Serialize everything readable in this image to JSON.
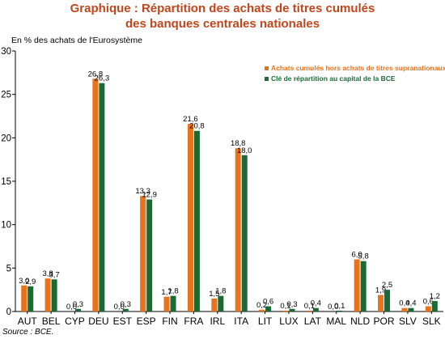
{
  "chart_data": {
    "type": "bar",
    "title": "Graphique : Répartition des achats de titres cumulés",
    "title_line2": "des banques centrales nationales",
    "unit_label": "En % des achats de l'Eurosystème",
    "source": "Source : BCE.",
    "ylim": [
      0,
      30
    ],
    "yticks": [
      0,
      5,
      10,
      15,
      20,
      25,
      30
    ],
    "grid": false,
    "legend_position": "top-right",
    "categories": [
      "AUT",
      "BEL",
      "CYP",
      "DEU",
      "EST",
      "ESP",
      "FIN",
      "FRA",
      "IRL",
      "ITA",
      "LIT",
      "LUX",
      "LAT",
      "MAL",
      "NLD",
      "POR",
      "SLV",
      "SLK"
    ],
    "series": [
      {
        "name": "Achats cumulés hors achats de titres supranationaux",
        "color": "#e8731a",
        "values": [
          3.0,
          3.8,
          0.0,
          26.8,
          0.0,
          13.3,
          1.7,
          21.6,
          1.5,
          18.8,
          0.2,
          0.1,
          0.1,
          0.0,
          6.0,
          1.9,
          0.4,
          0.6
        ],
        "labels": [
          "3,0",
          "3,8",
          "0,0",
          "26,8",
          "0,0",
          "13,3",
          "1,7",
          "21,6",
          "1,5",
          "18,8",
          "0,2",
          "0,1",
          "0,1",
          "0,0",
          "6,0",
          "1,9",
          "0,4",
          "0,6"
        ]
      },
      {
        "name": "Clé de répartition au capital de la BCE",
        "color": "#1b6a35",
        "values": [
          2.9,
          3.7,
          0.3,
          26.3,
          0.3,
          12.9,
          1.8,
          20.8,
          1.8,
          18.0,
          0.6,
          0.3,
          0.4,
          0.1,
          5.8,
          2.5,
          0.4,
          1.2
        ],
        "labels": [
          "2,9",
          "3,7",
          "0,3",
          "26,3",
          "0,3",
          "12,9",
          "1,8",
          "20,8",
          "1,8",
          "18,0",
          "0,6",
          "0,3",
          "0,4",
          "0,1",
          "5,8",
          "2,5",
          "0,4",
          "1,2"
        ]
      }
    ]
  }
}
